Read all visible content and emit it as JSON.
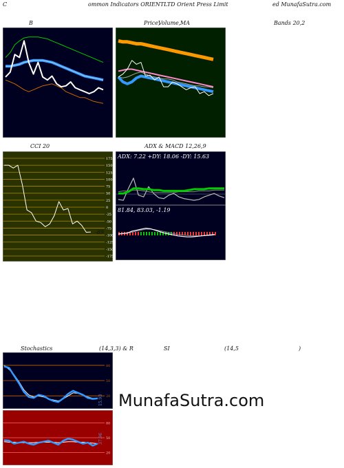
{
  "header": {
    "left": "C",
    "center": "ommon  Indicators ORIENTLTD Orient Press Limit",
    "right": "ed MunafaSutra.com"
  },
  "labels": {
    "bb": "B",
    "price": "Price,",
    "volume": "Volume,",
    "ma": "MA",
    "bands": "Bands 20,2",
    "cci": "CCI 20",
    "adx_macd": "ADX  & MACD 12,26,9",
    "stoch": "Stochastics",
    "stoch_params": "(14,3,3) & R",
    "rsi": "SI",
    "rsi_params": "(14,5",
    "rsi_close": ")"
  },
  "brand": "MunafaSutra.com",
  "colors": {
    "dark_panel": "#000020",
    "green_panel": "#002000",
    "olive_panel": "#2a3300",
    "red_panel": "#990000",
    "white": "#ffffff",
    "blue": "#3399ff",
    "green": "#00cc00",
    "orange": "#cc6600",
    "thick_orange": "#ff9900",
    "pink": "#ff88cc"
  },
  "chart_data": [
    {
      "type": "line",
      "name": "bollinger",
      "ylim": [
        0,
        100
      ],
      "series": [
        {
          "values": [
            55,
            60,
            78,
            75,
            92,
            70,
            58,
            70,
            55,
            52,
            56,
            48,
            45,
            46,
            50,
            44,
            42,
            40,
            38,
            40,
            44,
            42
          ]
        },
        {
          "values": [
            66,
            66,
            67,
            68,
            70,
            71,
            72,
            72,
            72,
            71,
            70,
            68,
            66,
            64,
            62,
            60,
            58,
            56,
            55,
            54,
            53,
            52
          ]
        },
        {
          "values": [
            75,
            80,
            88,
            92,
            95,
            96,
            96,
            96,
            95,
            94,
            92,
            90,
            88,
            86,
            84,
            82,
            80,
            78,
            76,
            74,
            72,
            70
          ]
        },
        {
          "values": [
            52,
            50,
            48,
            45,
            42,
            40,
            42,
            44,
            46,
            47,
            48,
            46,
            44,
            40,
            38,
            36,
            34,
            34,
            32,
            30,
            29,
            28
          ]
        }
      ]
    },
    {
      "type": "line",
      "name": "price-volume-ma",
      "ylim": [
        0,
        100
      ],
      "series": [
        {
          "values": [
            92,
            91,
            91,
            90,
            89,
            89,
            88,
            87,
            86,
            85,
            84,
            83,
            82,
            81,
            80,
            79,
            78,
            77,
            76,
            75,
            74,
            73
          ]
        },
        {
          "values": [
            61,
            62,
            63,
            63,
            62,
            61,
            60,
            59,
            58,
            57,
            56,
            55,
            54,
            53,
            52,
            51,
            50,
            49,
            48,
            47,
            46,
            45
          ]
        },
        {
          "values": [
            55,
            50,
            48,
            50,
            54,
            56,
            55,
            54,
            53,
            52,
            51,
            50,
            49,
            48,
            47,
            46,
            45,
            44,
            43,
            42,
            41,
            40
          ]
        },
        {
          "values": [
            55,
            54,
            55,
            57,
            59,
            60,
            58,
            56,
            55,
            54,
            53,
            53,
            52,
            50,
            49,
            48,
            47,
            46,
            46,
            45,
            45,
            44
          ]
        },
        {
          "values": [
            55,
            58,
            63,
            72,
            68,
            70,
            56,
            57,
            52,
            55,
            45,
            45,
            50,
            48,
            45,
            42,
            44,
            45,
            38,
            40,
            36,
            38
          ]
        }
      ]
    },
    {
      "type": "line",
      "name": "cci",
      "ylim": [
        -175,
        175
      ],
      "ticks": [
        "175",
        "150",
        "125",
        "100",
        "75",
        "50",
        "25",
        "0",
        "-25",
        "-50",
        "-75",
        "-100",
        "-125",
        "-150",
        "-175"
      ],
      "last_value": "-89",
      "series": [
        {
          "values": [
            150,
            150,
            140,
            150,
            80,
            -10,
            -20,
            -50,
            -55,
            -70,
            -60,
            -30,
            20,
            -10,
            -5,
            -60,
            -50,
            -65,
            -90,
            -89
          ]
        }
      ]
    },
    {
      "type": "line",
      "name": "adx",
      "ylim": [
        0,
        50
      ],
      "text": [
        "ADX: 7.22",
        "+DY: 18.06",
        "-DY: 15.63"
      ],
      "series": [
        {
          "values": [
            5,
            4,
            18,
            30,
            10,
            8,
            20,
            12,
            7,
            6,
            10,
            12,
            8,
            6,
            5,
            4,
            5,
            8,
            10,
            12,
            9,
            7
          ]
        },
        {
          "values": [
            12,
            12,
            14,
            18,
            18,
            17,
            17,
            16,
            16,
            15,
            15,
            15,
            15,
            15,
            16,
            17,
            17,
            17,
            18,
            18,
            18,
            18
          ]
        },
        {
          "values": [
            14,
            15,
            15,
            16,
            16,
            15,
            14,
            13,
            13,
            13,
            13,
            13,
            14,
            14,
            14,
            14,
            15,
            15,
            15,
            16,
            16,
            16
          ]
        }
      ]
    },
    {
      "type": "line",
      "name": "macd",
      "ylim": [
        -40,
        40
      ],
      "text": [
        "81.84",
        "83.03",
        "-1.19"
      ],
      "series": [
        {
          "values": [
            0,
            1,
            2,
            6,
            8,
            10,
            12,
            11,
            8,
            5,
            2,
            0,
            -2,
            -4,
            -5,
            -6,
            -6,
            -5,
            -4,
            -3,
            -2,
            -1
          ]
        },
        {
          "values": [
            0,
            1,
            2,
            4,
            6,
            8,
            10,
            10,
            9,
            7,
            5,
            3,
            1,
            -1,
            -2,
            -3,
            -4,
            -4,
            -4,
            -3,
            -3,
            -2
          ]
        }
      ]
    },
    {
      "type": "line",
      "name": "stochastics",
      "ylim": [
        0,
        100
      ],
      "ticks": [
        "80",
        "50",
        "20"
      ],
      "last_value": "15.93",
      "series": [
        {
          "values": [
            78,
            75,
            60,
            45,
            28,
            18,
            16,
            22,
            20,
            14,
            10,
            8,
            15,
            24,
            30,
            26,
            22,
            16,
            14,
            15
          ]
        },
        {
          "values": [
            80,
            72,
            62,
            48,
            32,
            22,
            18,
            20,
            18,
            14,
            12,
            10,
            14,
            20,
            26,
            25,
            22,
            18,
            15,
            15
          ]
        }
      ]
    },
    {
      "type": "line",
      "name": "rsi",
      "ylim": [
        0,
        100
      ],
      "ticks": [
        "80",
        "50",
        "20"
      ],
      "last_value": "37.96",
      "series": [
        {
          "values": [
            45,
            44,
            38,
            40,
            42,
            38,
            36,
            40,
            42,
            44,
            40,
            36,
            44,
            48,
            46,
            42,
            38,
            40,
            34,
            38
          ]
        },
        {
          "values": [
            42,
            41,
            41,
            40,
            40,
            40,
            40,
            41,
            41,
            41,
            41,
            40,
            41,
            42,
            42,
            41,
            41,
            40,
            39,
            38
          ]
        }
      ]
    }
  ]
}
